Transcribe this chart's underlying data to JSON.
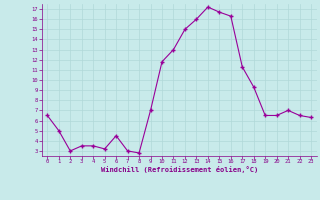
{
  "x": [
    0,
    1,
    2,
    3,
    4,
    5,
    6,
    7,
    8,
    9,
    10,
    11,
    12,
    13,
    14,
    15,
    16,
    17,
    18,
    19,
    20,
    21,
    22,
    23
  ],
  "y": [
    6.5,
    5.0,
    3.0,
    3.5,
    3.5,
    3.2,
    4.5,
    3.0,
    2.8,
    7.0,
    11.8,
    13.0,
    15.0,
    16.0,
    17.2,
    16.7,
    16.3,
    11.3,
    9.3,
    6.5,
    6.5,
    7.0,
    6.5,
    6.3
  ],
  "line_color": "#990099",
  "marker": "+",
  "marker_size": 3.5,
  "background_color": "#c8eaea",
  "grid_color": "#b0d8d8",
  "xlabel": "Windchill (Refroidissement éolien,°C)",
  "xlabel_color": "#880088",
  "tick_color": "#880088",
  "ylim": [
    2.5,
    17.5
  ],
  "xlim": [
    -0.5,
    23.5
  ],
  "yticks": [
    3,
    4,
    5,
    6,
    7,
    8,
    9,
    10,
    11,
    12,
    13,
    14,
    15,
    16,
    17
  ],
  "xticks": [
    0,
    1,
    2,
    3,
    4,
    5,
    6,
    7,
    8,
    9,
    10,
    11,
    12,
    13,
    14,
    15,
    16,
    17,
    18,
    19,
    20,
    21,
    22,
    23
  ]
}
